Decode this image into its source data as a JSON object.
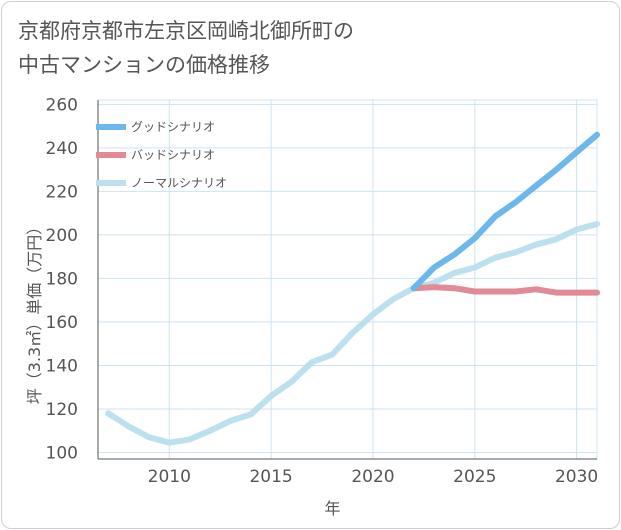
{
  "title_lines": [
    "京都府京都市左京区岡崎北御所町の",
    "中古マンションの価格推移"
  ],
  "colors": {
    "good": "#6cb7eb",
    "bad": "#e08b95",
    "normal": "#bde0ee",
    "grid": "#cfe3ef",
    "axis": "#555555",
    "frame": "#cfcfcf"
  },
  "chart_data": {
    "type": "line",
    "title": "京都府京都市左京区岡崎北御所町の中古マンションの価格推移",
    "xlabel": "年",
    "ylabel": "坪（3.3㎡）単価（万円）",
    "xlim": [
      2006.5,
      2031
    ],
    "ylim": [
      97,
      262
    ],
    "xticks": [
      2010,
      2015,
      2020,
      2025,
      2030
    ],
    "yticks": [
      100,
      120,
      140,
      160,
      180,
      200,
      220,
      240,
      260
    ],
    "legend": [
      "グッドシナリオ",
      "バッドシナリオ",
      "ノーマルシナリオ"
    ],
    "legend_position": "top-left",
    "series": [
      {
        "name": "ノーマルシナリオ",
        "key": "normal",
        "x": [
          2007,
          2008,
          2009,
          2010,
          2011,
          2012,
          2013,
          2014,
          2015,
          2016,
          2017,
          2018,
          2019,
          2020,
          2021,
          2022,
          2023,
          2024,
          2025,
          2026,
          2027,
          2028,
          2029,
          2030,
          2031
        ],
        "y": [
          118,
          112,
          107,
          104.5,
          106,
          110,
          114.5,
          117.5,
          126,
          132.5,
          141.5,
          145,
          155,
          163.5,
          170.5,
          175.5,
          178,
          182.5,
          185,
          189.5,
          192,
          195.5,
          198,
          202.5,
          205
        ]
      },
      {
        "name": "バッドシナリオ",
        "key": "bad",
        "x": [
          2022,
          2023,
          2024,
          2025,
          2026,
          2027,
          2028,
          2029,
          2030,
          2031
        ],
        "y": [
          175.5,
          176,
          175.5,
          174,
          174,
          174,
          175,
          173.5,
          173.5,
          173.5
        ]
      },
      {
        "name": "グッドシナリオ",
        "key": "good",
        "x": [
          2022,
          2023,
          2024,
          2025,
          2026,
          2027,
          2028,
          2029,
          2030,
          2031
        ],
        "y": [
          175.5,
          185,
          191,
          198.5,
          208.5,
          215,
          222.5,
          230,
          238,
          246
        ]
      }
    ]
  }
}
